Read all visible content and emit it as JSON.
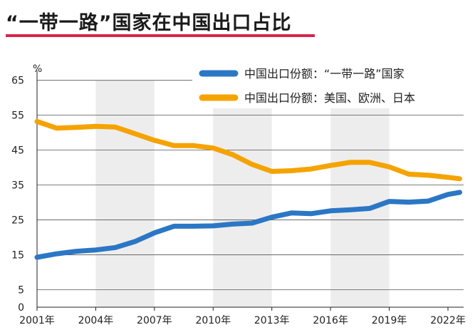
{
  "title": "“一带一路”国家在中国出口占比",
  "colors": {
    "accent_rule": "#d7264b",
    "blue": "#2b77c5",
    "orange": "#f5a300",
    "shade": "#eeeded",
    "grid": "#555555"
  },
  "chart_data": {
    "type": "line",
    "y_unit_label": "%",
    "yticks": [
      0,
      5,
      15,
      25,
      35,
      45,
      55,
      65
    ],
    "ylim": [
      0,
      68
    ],
    "xlim": [
      2001,
      2022.8
    ],
    "xticks": [
      "2001年",
      "2004年",
      "2007年",
      "2010年",
      "2013年",
      "2016年",
      "2019年",
      "2022年"
    ],
    "xtick_values": [
      2001,
      2004,
      2007,
      2010,
      2013,
      2016,
      2019,
      2022
    ],
    "shaded_ranges": [
      [
        2004,
        2007
      ],
      [
        2010,
        2013
      ],
      [
        2016,
        2019
      ]
    ],
    "grid": "horizontal",
    "legend_position": "top-right",
    "x": [
      2001,
      2002,
      2003,
      2004,
      2005,
      2006,
      2007,
      2008,
      2009,
      2010,
      2011,
      2012,
      2013,
      2014,
      2015,
      2016,
      2017,
      2018,
      2019,
      2020,
      2021,
      2022,
      2022.6
    ],
    "series": [
      {
        "name": "中国出口份额：“一带一路”国家",
        "color": "#2b77c5",
        "values": [
          14.3,
          15.3,
          16.0,
          16.4,
          17.1,
          18.8,
          21.3,
          23.2,
          23.2,
          23.3,
          23.8,
          24.1,
          25.8,
          27.0,
          26.8,
          27.6,
          27.9,
          28.3,
          30.3,
          30.1,
          30.4,
          32.3,
          32.9
        ]
      },
      {
        "name": "中国出口份额：美国、欧洲、日本",
        "color": "#f5a300",
        "values": [
          53.2,
          51.3,
          51.5,
          51.8,
          51.6,
          49.7,
          47.8,
          46.3,
          46.3,
          45.6,
          43.7,
          40.9,
          38.9,
          39.1,
          39.6,
          40.6,
          41.5,
          41.5,
          40.2,
          38.1,
          37.8,
          37.2,
          36.8
        ]
      }
    ]
  }
}
